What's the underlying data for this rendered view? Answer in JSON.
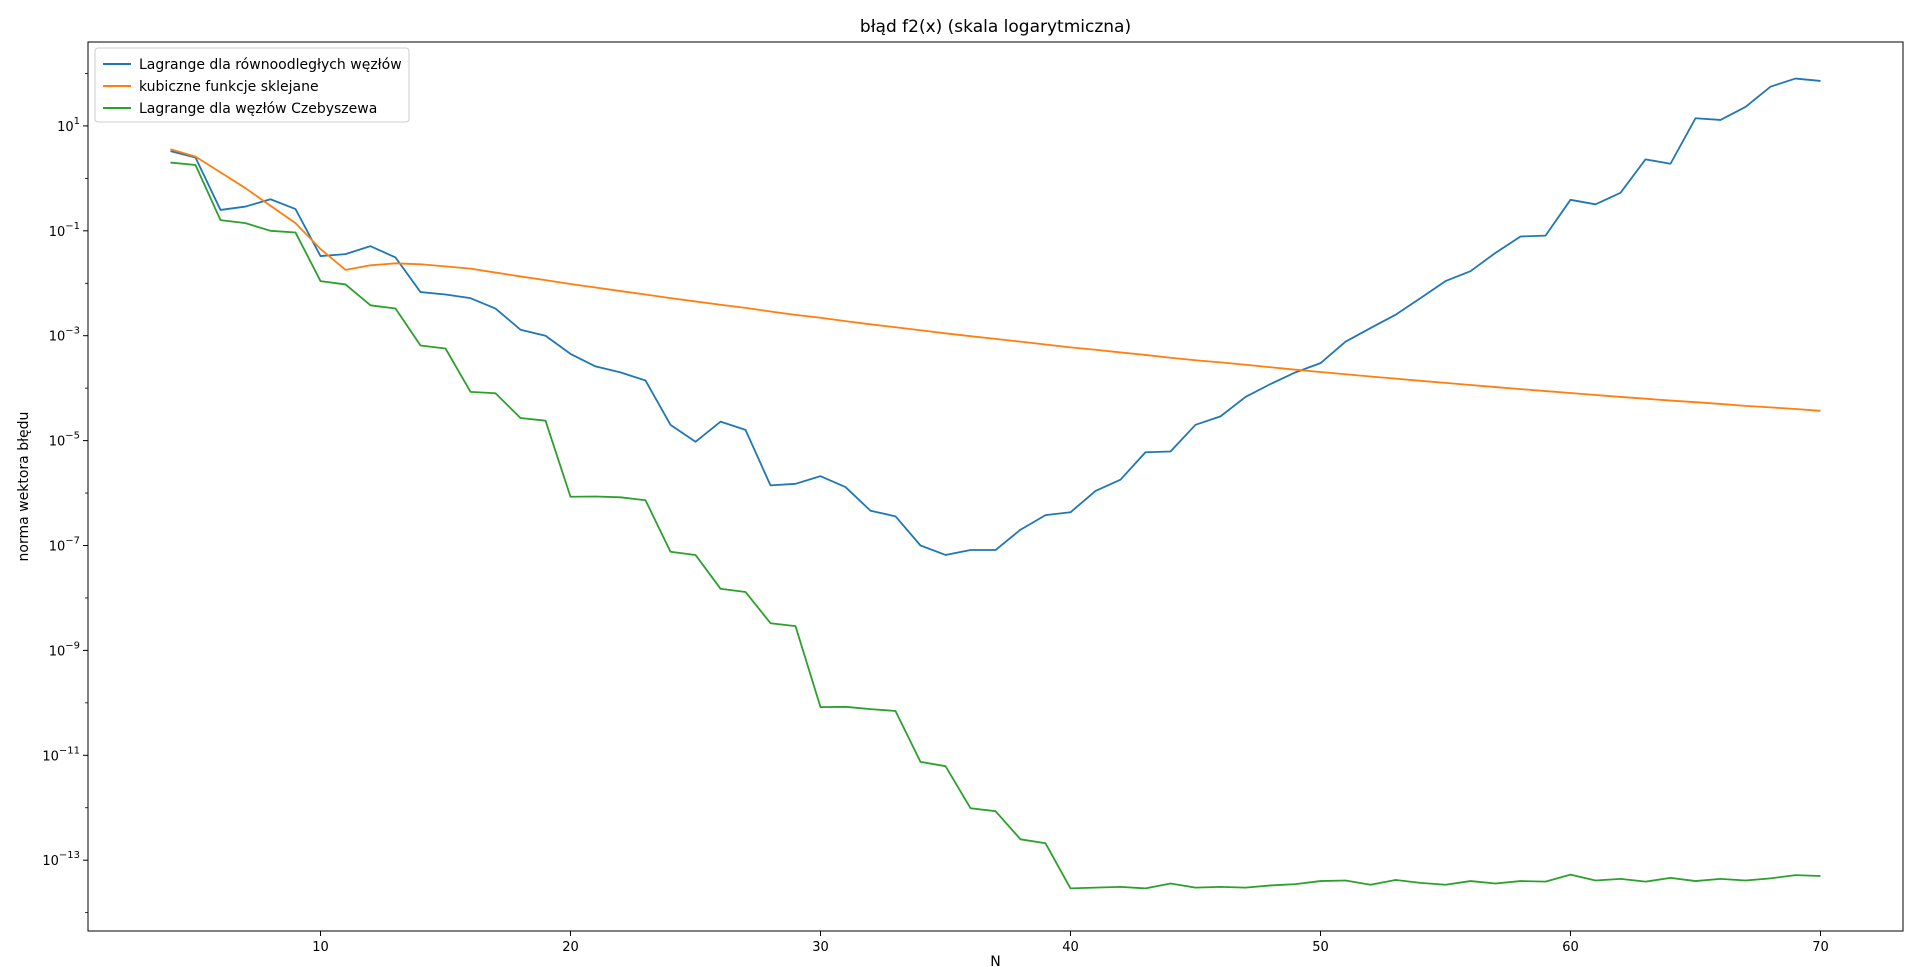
{
  "chart_data": {
    "type": "line",
    "title": "błąd f2(x) (skala logarytmiczna)",
    "xlabel": "N",
    "ylabel": "norma wektora błędu",
    "y_scale": "log",
    "xlim": [
      0.7,
      73.3
    ],
    "ylim_exponent": [
      -14.35,
      2.6
    ],
    "x_ticks": [
      10,
      20,
      30,
      40,
      50,
      60,
      70
    ],
    "y_tick_exponents": [
      1,
      -1,
      -3,
      -5,
      -7,
      -9,
      -11,
      -13
    ],
    "legend_position": "top-left",
    "grid": false,
    "x": [
      4,
      5,
      6,
      7,
      8,
      9,
      10,
      11,
      12,
      13,
      14,
      15,
      16,
      17,
      18,
      19,
      20,
      21,
      22,
      23,
      24,
      25,
      26,
      27,
      28,
      29,
      30,
      31,
      32,
      33,
      34,
      35,
      36,
      37,
      38,
      39,
      40,
      41,
      42,
      43,
      44,
      45,
      46,
      47,
      48,
      49,
      50,
      51,
      52,
      53,
      54,
      55,
      56,
      57,
      58,
      59,
      60,
      61,
      62,
      63,
      64,
      65,
      66,
      67,
      68,
      69,
      70
    ],
    "series": [
      {
        "name": "Lagrange dla równoodległych węzłów",
        "color": "#1f77b4",
        "values": [
          3.3,
          2.5,
          0.25,
          0.29,
          0.4,
          0.26,
          0.033,
          0.036,
          0.051,
          0.031,
          0.0068,
          0.0061,
          0.0052,
          0.0033,
          0.0013,
          0.001,
          0.00045,
          0.00026,
          0.0002,
          0.00014,
          2e-05,
          9.5e-06,
          2.3e-05,
          1.6e-05,
          1.4e-06,
          1.5e-06,
          2.1e-06,
          1.3e-06,
          4.6e-07,
          3.6e-07,
          1e-07,
          6.6e-08,
          8.2e-08,
          8.2e-08,
          2e-07,
          3.8e-07,
          4.3e-07,
          1.1e-06,
          1.8e-06,
          6e-06,
          6.2e-06,
          2e-05,
          2.9e-05,
          6.8e-05,
          0.00012,
          0.0002,
          0.0003,
          0.00077,
          0.0014,
          0.0025,
          0.0052,
          0.011,
          0.017,
          0.038,
          0.078,
          0.081,
          0.39,
          0.32,
          0.53,
          2.3,
          1.9,
          14,
          13,
          23,
          56,
          80,
          72
        ]
      },
      {
        "name": "kubiczne funkcje sklejane",
        "color": "#ff7f0e",
        "values": [
          3.6,
          2.6,
          1.3,
          0.65,
          0.3,
          0.14,
          0.045,
          0.018,
          0.022,
          0.024,
          0.023,
          0.021,
          0.019,
          0.016,
          0.0135,
          0.0115,
          0.0097,
          0.0083,
          0.0071,
          0.0061,
          0.0052,
          0.0045,
          0.0039,
          0.0034,
          0.0029,
          0.0025,
          0.0022,
          0.0019,
          0.00165,
          0.00145,
          0.00127,
          0.00111,
          0.00098,
          0.00087,
          0.00077,
          0.00068,
          0.0006,
          0.00054,
          0.00048,
          0.00043,
          0.00038,
          0.00034,
          0.00031,
          0.00028,
          0.00025,
          0.000225,
          0.000203,
          0.000184,
          0.000167,
          0.000152,
          0.000138,
          0.000126,
          0.000115,
          0.000105,
          9.6e-05,
          8.8e-05,
          8.1e-05,
          7.4e-05,
          6.8e-05,
          6.3e-05,
          5.8e-05,
          5.4e-05,
          5e-05,
          4.6e-05,
          4.3e-05,
          4e-05,
          3.7e-05
        ]
      },
      {
        "name": "Lagrange dla węzłów Czebyszewa",
        "color": "#2ca02c",
        "values": [
          2.0,
          1.8,
          0.16,
          0.14,
          0.1,
          0.093,
          0.011,
          0.0095,
          0.0038,
          0.0033,
          0.00065,
          0.00057,
          8.5e-05,
          8e-05,
          2.7e-05,
          2.4e-05,
          8.5e-07,
          8.6e-07,
          8.3e-07,
          7.3e-07,
          7.6e-08,
          6.6e-08,
          1.5e-08,
          1.3e-08,
          3.3e-09,
          2.9e-09,
          8.3e-11,
          8.4e-11,
          7.6e-11,
          7e-11,
          7.5e-12,
          6.2e-12,
          9.8e-13,
          8.6e-13,
          2.5e-13,
          2.1e-13,
          2.9e-14,
          3e-14,
          3.1e-14,
          2.9e-14,
          3.6e-14,
          3e-14,
          3.1e-14,
          3e-14,
          3.3e-14,
          3.5e-14,
          4e-14,
          4.1e-14,
          3.4e-14,
          4.2e-14,
          3.7e-14,
          3.4e-14,
          4e-14,
          3.6e-14,
          4e-14,
          3.9e-14,
          5.3e-14,
          4.1e-14,
          4.4e-14,
          3.9e-14,
          4.6e-14,
          4e-14,
          4.4e-14,
          4.1e-14,
          4.5e-14,
          5.2e-14,
          5e-14
        ]
      }
    ]
  }
}
